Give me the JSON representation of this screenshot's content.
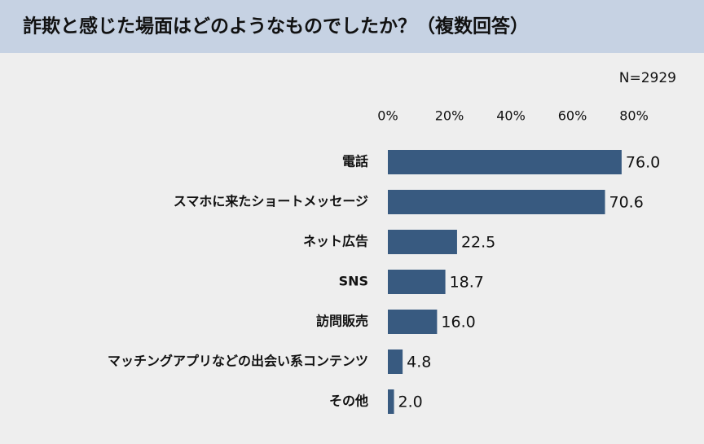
{
  "chart_data": {
    "type": "hbar",
    "title": "詐欺と感じた場面はどのようなものでしたか？（複数回答）",
    "annotation": "N=2929",
    "categories": [
      "電話",
      "スマホに来たショートメッセージ",
      "ネット広告",
      "SNS",
      "訪問販売",
      "マッチングアプリなどの出会い系コンテンツ",
      "その他"
    ],
    "values": [
      76.0,
      70.6,
      22.5,
      18.7,
      16.0,
      4.8,
      2.0
    ],
    "value_labels": [
      "76.0",
      "70.6",
      "22.5",
      "18.7",
      "16.0",
      "4.8",
      "2.0"
    ],
    "color": "#385a80",
    "xlim": [
      0,
      80
    ],
    "xticks": [
      {
        "value": 0,
        "label": "0%"
      },
      {
        "value": 20,
        "label": "20%"
      },
      {
        "value": 40,
        "label": "40%"
      },
      {
        "value": 60,
        "label": "60%"
      },
      {
        "value": 80,
        "label": "80%"
      }
    ],
    "grid": false
  }
}
